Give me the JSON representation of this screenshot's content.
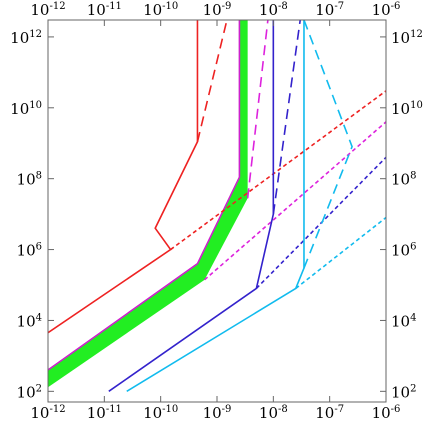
{
  "chart_data": {
    "type": "line",
    "title": "",
    "xlabel": "",
    "ylabel": "",
    "xscale": "log",
    "yscale": "log",
    "xlim": [
      1e-12,
      1e-06
    ],
    "ylim": [
      50,
      3000000000000.0
    ],
    "grid": false,
    "x_ticks": [
      {
        "base": "10",
        "exp": "-12",
        "value": 1e-12
      },
      {
        "base": "10",
        "exp": "-11",
        "value": 1e-11
      },
      {
        "base": "10",
        "exp": "-10",
        "value": 1e-10
      },
      {
        "base": "10",
        "exp": "-9",
        "value": 1e-09
      },
      {
        "base": "10",
        "exp": "-8",
        "value": 1e-08
      },
      {
        "base": "10",
        "exp": "-7",
        "value": 1e-07
      },
      {
        "base": "10",
        "exp": "-6",
        "value": 1e-06
      }
    ],
    "y_ticks": [
      {
        "base": "10",
        "exp": "2",
        "value": 100.0
      },
      {
        "base": "10",
        "exp": "4",
        "value": 10000.0
      },
      {
        "base": "10",
        "exp": "6",
        "value": 1000000.0
      },
      {
        "base": "10",
        "exp": "8",
        "value": 100000000.0
      },
      {
        "base": "10",
        "exp": "10",
        "value": 10000000000.0
      },
      {
        "base": "10",
        "exp": "12",
        "value": 1000000000000.0
      }
    ],
    "band": {
      "color": "#22ee22",
      "outline_color": "#cc22cc",
      "upper": [
        [
          1e-12,
          400
        ],
        [
          4.5e-10,
          400000.0
        ],
        [
          2.5e-09,
          110000000.0
        ],
        [
          2.5e-09,
          3000000000000.0
        ]
      ],
      "lower": [
        [
          1e-12,
          130
        ],
        [
          6e-10,
          140000.0
        ],
        [
          3.5e-09,
          28000000.0
        ],
        [
          3.5e-09,
          3000000000000.0
        ]
      ]
    },
    "series": [
      {
        "color": "#ee2222",
        "style": "solid",
        "points": [
          [
            1e-12,
            4500
          ],
          [
            1.5e-10,
            1000000.0
          ],
          [
            8e-11,
            4000000.0
          ],
          [
            4.5e-10,
            1100000000.0
          ],
          [
            4.5e-10,
            3000000000000.0
          ]
        ]
      },
      {
        "color": "#ee2222",
        "style": "dashed",
        "points": [
          [
            4.5e-10,
            1100000000.0
          ],
          [
            1.5e-09,
            3000000000000.0
          ]
        ]
      },
      {
        "color": "#ee2222",
        "style": "dotted",
        "points": [
          [
            1.5e-10,
            1000000.0
          ],
          [
            1e-06,
            30000000000.0
          ]
        ]
      },
      {
        "color": "#dd22dd",
        "style": "dashed",
        "points": [
          [
            3.5e-09,
            28000000.0
          ],
          [
            8e-09,
            3000000000000.0
          ]
        ]
      },
      {
        "color": "#dd22dd",
        "style": "dotted",
        "points": [
          [
            6e-10,
            140000.0
          ],
          [
            1e-06,
            4000000000.0
          ]
        ]
      },
      {
        "color": "#3322cc",
        "style": "solid",
        "points": [
          [
            1.2e-11,
            100
          ],
          [
            5e-09,
            80000.0
          ],
          [
            1e-08,
            10000000.0
          ],
          [
            1e-08,
            3000000000000.0
          ]
        ]
      },
      {
        "color": "#3322cc",
        "style": "dashed",
        "points": [
          [
            1e-08,
            10000000.0
          ],
          [
            3e-08,
            3000000000000.0
          ]
        ]
      },
      {
        "color": "#3322cc",
        "style": "dotted",
        "points": [
          [
            5e-09,
            80000.0
          ],
          [
            1e-06,
            400000000.0
          ]
        ]
      },
      {
        "color": "#11bbee",
        "style": "solid",
        "points": [
          [
            2.5e-11,
            100
          ],
          [
            2.5e-08,
            80000.0
          ],
          [
            3.5e-08,
            300000.0
          ],
          [
            3.5e-08,
            3000000000000.0
          ]
        ]
      },
      {
        "color": "#11bbee",
        "style": "dashed",
        "points": [
          [
            3.5e-08,
            300000.0
          ],
          [
            2.5e-07,
            800000000.0
          ],
          [
            3.5e-08,
            3000000000000.0
          ]
        ]
      },
      {
        "color": "#11bbee",
        "style": "dotted",
        "points": [
          [
            2.5e-08,
            80000.0
          ],
          [
            1e-06,
            8000000.0
          ]
        ]
      }
    ]
  }
}
